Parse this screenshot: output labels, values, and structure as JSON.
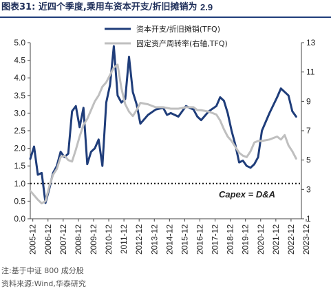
{
  "header": {
    "fig_label": "图表31:",
    "title_text": "近四个季度,乘用车资本开支/折旧摊销为",
    "title_value": "2.9"
  },
  "notes": {
    "note": "注:基于中证 800 成分股",
    "source": "资料来源:Wind,华泰研究"
  },
  "chart_data": {
    "type": "line",
    "title": "近四个季度,乘用车资本开支/折旧摊销为 2.9",
    "x_tick_labels": [
      "2005-12",
      "2006-12",
      "2007-12",
      "2008-12",
      "2009-12",
      "2010-12",
      "2011-12",
      "2012-12",
      "2013-12",
      "2014-12",
      "2015-12",
      "2016-12",
      "2017-12",
      "2018-12",
      "2019-12",
      "2020-12",
      "2021-12",
      "2022-12",
      "2023-12"
    ],
    "ylim_left": [
      0.0,
      5.0
    ],
    "yticks_left": [
      "0.0",
      "0.5",
      "1.0",
      "1.5",
      "2.0",
      "2.5",
      "3.0",
      "3.5",
      "4.0",
      "4.5",
      "5.0"
    ],
    "ylim_right": [
      1,
      13
    ],
    "yticks_right": [
      "1",
      "3",
      "5",
      "7",
      "9",
      "11",
      "13"
    ],
    "reference_line": {
      "y": 1.0,
      "axis": "left",
      "style": "dotted",
      "label": "Capex = D&A"
    },
    "grid": false,
    "legend_position": "top-right",
    "series": [
      {
        "name": "资本开支/折旧摊销(TFQ)",
        "axis": "left",
        "color": "#1f3d7a",
        "points": [
          [
            2005.75,
            1.7
          ],
          [
            2006.0,
            2.05
          ],
          [
            2006.25,
            1.25
          ],
          [
            2006.5,
            1.3
          ],
          [
            2006.75,
            0.45
          ],
          [
            2007.0,
            0.85
          ],
          [
            2007.25,
            1.3
          ],
          [
            2007.5,
            1.5
          ],
          [
            2007.75,
            1.9
          ],
          [
            2008.0,
            1.75
          ],
          [
            2008.25,
            1.85
          ],
          [
            2008.5,
            3.05
          ],
          [
            2008.75,
            3.2
          ],
          [
            2009.0,
            2.6
          ],
          [
            2009.25,
            3.15
          ],
          [
            2009.5,
            1.55
          ],
          [
            2009.75,
            1.9
          ],
          [
            2010.0,
            2.0
          ],
          [
            2010.25,
            2.25
          ],
          [
            2010.5,
            1.5
          ],
          [
            2010.75,
            3.3
          ],
          [
            2011.0,
            3.8
          ],
          [
            2011.25,
            4.9
          ],
          [
            2011.5,
            3.5
          ],
          [
            2011.75,
            3.3
          ],
          [
            2012.0,
            3.4
          ],
          [
            2012.25,
            4.6
          ],
          [
            2012.5,
            3.6
          ],
          [
            2012.75,
            3.25
          ],
          [
            2013.0,
            2.7
          ],
          [
            2013.5,
            2.95
          ],
          [
            2014.0,
            3.1
          ],
          [
            2014.5,
            3.15
          ],
          [
            2014.75,
            2.95
          ],
          [
            2015.0,
            3.0
          ],
          [
            2015.5,
            2.9
          ],
          [
            2016.0,
            3.2
          ],
          [
            2016.5,
            3.1
          ],
          [
            2016.75,
            2.9
          ],
          [
            2017.0,
            2.8
          ],
          [
            2017.5,
            3.05
          ],
          [
            2018.0,
            3.2
          ],
          [
            2018.25,
            3.45
          ],
          [
            2018.5,
            3.35
          ],
          [
            2018.75,
            3.0
          ],
          [
            2019.0,
            2.5
          ],
          [
            2019.25,
            2.1
          ],
          [
            2019.5,
            1.6
          ],
          [
            2019.75,
            1.65
          ],
          [
            2020.0,
            1.5
          ],
          [
            2020.25,
            1.45
          ],
          [
            2020.5,
            1.55
          ],
          [
            2020.75,
            1.75
          ],
          [
            2021.0,
            2.5
          ],
          [
            2021.5,
            3.0
          ],
          [
            2022.0,
            3.45
          ],
          [
            2022.25,
            3.7
          ],
          [
            2022.5,
            3.6
          ],
          [
            2022.75,
            3.5
          ],
          [
            2023.0,
            3.05
          ],
          [
            2023.25,
            2.9
          ]
        ]
      },
      {
        "name": "固定资产周转率(右轴,TFQ)",
        "axis": "right",
        "color": "#bfbfbf",
        "points": [
          [
            2005.75,
            2.9
          ],
          [
            2006.0,
            2.6
          ],
          [
            2006.25,
            2.3
          ],
          [
            2006.5,
            2.05
          ],
          [
            2006.75,
            2.2
          ],
          [
            2007.0,
            3.2
          ],
          [
            2007.25,
            4.0
          ],
          [
            2007.5,
            4.4
          ],
          [
            2007.75,
            5.2
          ],
          [
            2008.0,
            5.3
          ],
          [
            2008.25,
            5.0
          ],
          [
            2008.5,
            4.9
          ],
          [
            2008.75,
            5.7
          ],
          [
            2009.0,
            6.6
          ],
          [
            2009.25,
            7.4
          ],
          [
            2009.5,
            7.8
          ],
          [
            2009.75,
            8.4
          ],
          [
            2010.0,
            9.0
          ],
          [
            2010.25,
            9.4
          ],
          [
            2010.5,
            10.0
          ],
          [
            2010.75,
            10.3
          ],
          [
            2011.0,
            10.8
          ],
          [
            2011.25,
            11.3
          ],
          [
            2011.5,
            11.5
          ],
          [
            2011.75,
            9.9
          ],
          [
            2012.0,
            8.8
          ],
          [
            2012.25,
            8.3
          ],
          [
            2012.5,
            8.0
          ],
          [
            2012.75,
            8.4
          ],
          [
            2013.0,
            8.9
          ],
          [
            2013.5,
            8.8
          ],
          [
            2014.0,
            8.6
          ],
          [
            2014.5,
            8.6
          ],
          [
            2015.0,
            8.5
          ],
          [
            2015.5,
            8.5
          ],
          [
            2016.0,
            8.6
          ],
          [
            2016.5,
            8.6
          ],
          [
            2016.75,
            8.4
          ],
          [
            2017.0,
            8.4
          ],
          [
            2017.5,
            8.3
          ],
          [
            2018.0,
            8.1
          ],
          [
            2018.25,
            7.7
          ],
          [
            2018.5,
            7.1
          ],
          [
            2018.75,
            6.6
          ],
          [
            2019.0,
            6.3
          ],
          [
            2019.25,
            5.9
          ],
          [
            2019.5,
            5.5
          ],
          [
            2019.75,
            5.3
          ],
          [
            2020.0,
            5.2
          ],
          [
            2020.25,
            5.6
          ],
          [
            2020.5,
            6.2
          ],
          [
            2020.75,
            6.3
          ],
          [
            2021.0,
            6.3
          ],
          [
            2021.5,
            6.4
          ],
          [
            2022.0,
            6.6
          ],
          [
            2022.25,
            6.4
          ],
          [
            2022.5,
            6.7
          ],
          [
            2022.75,
            6.0
          ],
          [
            2023.0,
            5.6
          ],
          [
            2023.25,
            5.1
          ]
        ]
      }
    ]
  }
}
